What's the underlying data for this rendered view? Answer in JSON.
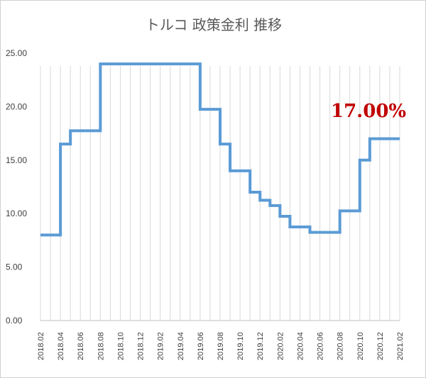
{
  "chart_data": {
    "type": "line",
    "title": "トルコ 政策金利 推移",
    "callout": "17.00%",
    "ylim": [
      0,
      25
    ],
    "yticks": [
      "0.00",
      "5.00",
      "10.00",
      "15.00",
      "20.00",
      "25.00"
    ],
    "grid": "vertical",
    "line_color": "#5b9bd5",
    "callout_color": "#c00000",
    "x": [
      "2018.02",
      "2018.03",
      "2018.04",
      "2018.05",
      "2018.06",
      "2018.07",
      "2018.08",
      "2018.09",
      "2018.10",
      "2018.11",
      "2018.12",
      "2019.01",
      "2019.02",
      "2019.03",
      "2019.04",
      "2019.05",
      "2019.06",
      "2019.07",
      "2019.08",
      "2019.09",
      "2019.10",
      "2019.11",
      "2019.12",
      "2020.01",
      "2020.02",
      "2020.03",
      "2020.04",
      "2020.05",
      "2020.06",
      "2020.07",
      "2020.08",
      "2020.09",
      "2020.10",
      "2020.11",
      "2020.12",
      "2021.01",
      "2021.02"
    ],
    "xtick_labels": [
      "2018.02",
      "2018.04",
      "2018.06",
      "2018.08",
      "2018.10",
      "2018.12",
      "2019.02",
      "2019.04",
      "2019.06",
      "2019.08",
      "2019.10",
      "2019.12",
      "2020.02",
      "2020.04",
      "2020.06",
      "2020.08",
      "2020.10",
      "2020.12",
      "2021.02"
    ],
    "values": [
      8.0,
      8.0,
      8.0,
      16.5,
      17.75,
      17.75,
      17.75,
      24.0,
      24.0,
      24.0,
      24.0,
      24.0,
      24.0,
      24.0,
      24.0,
      24.0,
      24.0,
      19.75,
      19.75,
      16.5,
      14.0,
      14.0,
      12.0,
      11.25,
      10.75,
      9.75,
      8.75,
      8.75,
      8.25,
      8.25,
      8.25,
      10.25,
      10.25,
      15.0,
      17.0,
      17.0,
      17.0
    ]
  }
}
